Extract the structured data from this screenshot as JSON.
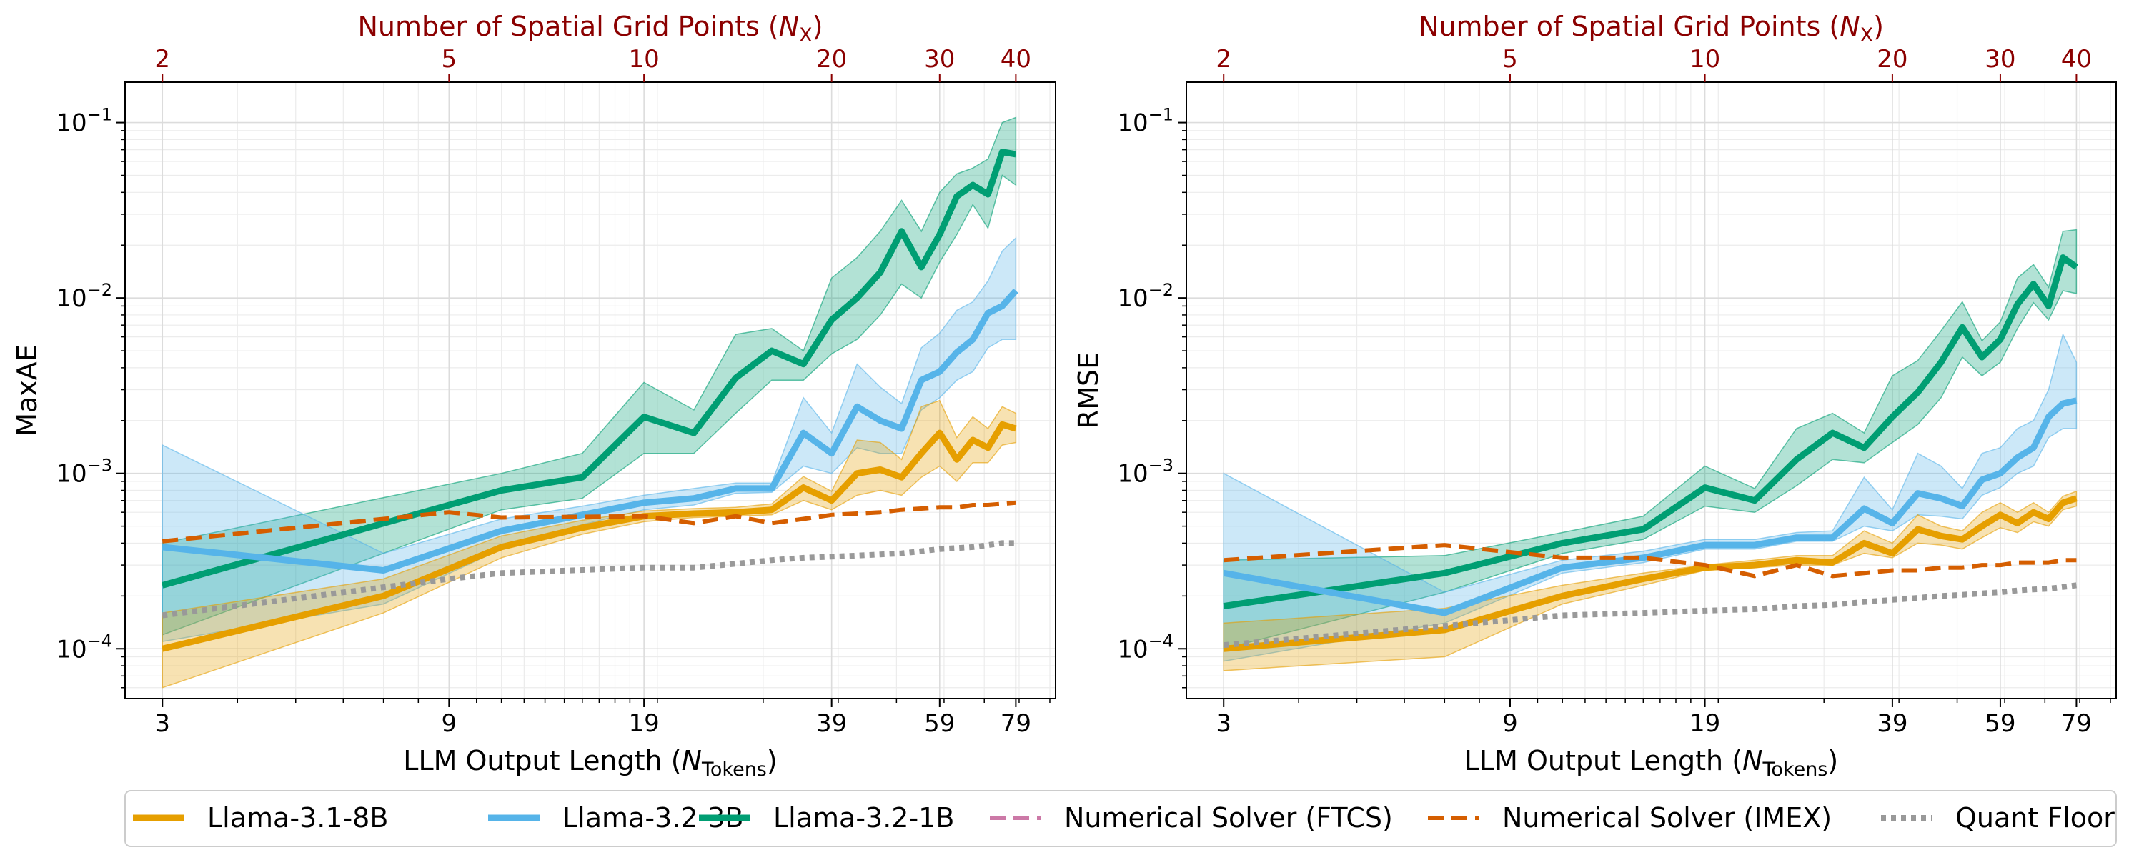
{
  "figure": {
    "legend": [
      {
        "label": "Llama-3.1-8B",
        "color": "#e69f00",
        "style": "solid"
      },
      {
        "label": "Llama-3.2-3B",
        "color": "#56b4e9",
        "style": "solid"
      },
      {
        "label": "Llama-3.2-1B",
        "color": "#009e73",
        "style": "solid"
      },
      {
        "label": "Numerical Solver (FTCS)",
        "color": "#cc79a7",
        "style": "dashed"
      },
      {
        "label": "Numerical Solver (IMEX)",
        "color": "#d55e00",
        "style": "dashed"
      },
      {
        "label": "Quant Floor",
        "color": "#999999",
        "style": "dotted"
      }
    ],
    "top_axis_color": "#8b0000"
  },
  "chart_data": [
    {
      "type": "line",
      "ylabel": "MaxAE",
      "xlabel": "LLM Output Length (N_Tokens)",
      "xlabel_main": "LLM Output Length (",
      "xlabel_var": "N",
      "xlabel_sub": "Tokens",
      "xlabel_end": ")",
      "top_xlabel": "Number of Spatial Grid Points (N_X)",
      "top_xlabel_main": "Number of Spatial Grid Points (",
      "top_xlabel_var": "N",
      "top_xlabel_sub": "X",
      "top_xlabel_end": ")",
      "xscale": "log",
      "yscale": "log",
      "xlim": [
        2.6,
        92
      ],
      "ylim": [
        5.2e-05,
        0.17
      ],
      "xticks": [
        3,
        9,
        19,
        39,
        59,
        79
      ],
      "xtick_labels": [
        "3",
        "9",
        "19",
        "39",
        "59",
        "79"
      ],
      "top_ticks": [
        2,
        5,
        10,
        20,
        30,
        40
      ],
      "top_tick_labels": [
        "2",
        "5",
        "10",
        "20",
        "30",
        "40"
      ],
      "yticks": [
        0.0001,
        0.001,
        0.01,
        0.1
      ],
      "ytick_labels": [
        "10",
        "10",
        "10",
        "10"
      ],
      "ytick_exps": [
        "−4",
        "−3",
        "−2",
        "−1"
      ],
      "series": [
        {
          "name": "Llama-3.2-1B",
          "color": "#009e73",
          "x": [
            3,
            11,
            15,
            19,
            23,
            27,
            31,
            35,
            39,
            43,
            47,
            51,
            55,
            59,
            63,
            67,
            71,
            75,
            79
          ],
          "y": [
            0.00023,
            0.0008,
            0.00095,
            0.0021,
            0.0017,
            0.0035,
            0.005,
            0.0042,
            0.0075,
            0.01,
            0.014,
            0.024,
            0.015,
            0.023,
            0.038,
            0.044,
            0.039,
            0.068,
            0.066
          ],
          "lower": [
            0.00012,
            0.00062,
            0.00072,
            0.0013,
            0.0013,
            0.0022,
            0.0034,
            0.0034,
            0.0048,
            0.0058,
            0.008,
            0.012,
            0.01,
            0.016,
            0.023,
            0.034,
            0.025,
            0.05,
            0.044
          ],
          "upper": [
            0.0004,
            0.001,
            0.0013,
            0.0033,
            0.0023,
            0.0062,
            0.0067,
            0.005,
            0.013,
            0.017,
            0.024,
            0.036,
            0.024,
            0.04,
            0.051,
            0.055,
            0.062,
            0.1,
            0.107
          ]
        },
        {
          "name": "Llama-3.2-3B",
          "color": "#56b4e9",
          "x": [
            3,
            7,
            11,
            15,
            19,
            23,
            27,
            31,
            35,
            39,
            43,
            47,
            51,
            55,
            59,
            63,
            67,
            71,
            75,
            79
          ],
          "y": [
            0.00038,
            0.00028,
            0.00047,
            0.00058,
            0.00068,
            0.00072,
            0.00082,
            0.00082,
            0.0017,
            0.0013,
            0.0024,
            0.002,
            0.0018,
            0.0034,
            0.0038,
            0.0049,
            0.0058,
            0.0082,
            0.009,
            0.011
          ],
          "lower": [
            0.00011,
            0.00018,
            0.00037,
            0.00051,
            0.00062,
            0.00066,
            0.00077,
            0.00078,
            0.0011,
            0.001,
            0.0014,
            0.0013,
            0.0013,
            0.0023,
            0.0027,
            0.0034,
            0.0038,
            0.0052,
            0.0058,
            0.0058
          ],
          "upper": [
            0.00145,
            0.00035,
            0.00055,
            0.00065,
            0.00075,
            0.00082,
            0.00088,
            0.00088,
            0.0027,
            0.0017,
            0.0042,
            0.0031,
            0.0025,
            0.0052,
            0.0063,
            0.0085,
            0.0095,
            0.0125,
            0.0185,
            0.022
          ]
        },
        {
          "name": "Llama-3.1-8B",
          "color": "#e69f00",
          "x": [
            3,
            7,
            11,
            15,
            19,
            23,
            27,
            31,
            35,
            39,
            43,
            47,
            51,
            55,
            59,
            63,
            67,
            71,
            75,
            79
          ],
          "y": [
            0.0001,
            0.0002,
            0.00038,
            0.00049,
            0.00057,
            0.00059,
            0.0006,
            0.00062,
            0.00083,
            0.0007,
            0.001,
            0.00105,
            0.00095,
            0.0013,
            0.0017,
            0.0012,
            0.00155,
            0.0014,
            0.0019,
            0.0018
          ],
          "lower": [
            6e-05,
            0.00016,
            0.00033,
            0.00045,
            0.00053,
            0.00056,
            0.00057,
            0.00058,
            0.0007,
            0.00062,
            0.00075,
            0.0008,
            0.00075,
            0.00095,
            0.0011,
            0.0009,
            0.00115,
            0.00115,
            0.00145,
            0.0015
          ],
          "upper": [
            0.00016,
            0.00025,
            0.00044,
            0.00054,
            0.00061,
            0.00063,
            0.00064,
            0.00067,
            0.00096,
            0.00079,
            0.00155,
            0.0015,
            0.0012,
            0.0024,
            0.0026,
            0.0016,
            0.0021,
            0.0018,
            0.0024,
            0.0022
          ]
        },
        {
          "name": "Numerical Solver (IMEX)",
          "color": "#d55e00",
          "dash": "dashed",
          "x": [
            3,
            9,
            11,
            19,
            23,
            27,
            31,
            35,
            39,
            43,
            47,
            51,
            55,
            59,
            63,
            67,
            71,
            75,
            79
          ],
          "y": [
            0.00041,
            0.0006,
            0.00056,
            0.00057,
            0.00052,
            0.00057,
            0.00052,
            0.00055,
            0.00058,
            0.00059,
            0.0006,
            0.00062,
            0.00063,
            0.00064,
            0.00064,
            0.00066,
            0.00066,
            0.00067,
            0.00068
          ]
        },
        {
          "name": "Quant Floor",
          "color": "#999999",
          "dash": "dotted",
          "x": [
            3,
            9,
            11,
            19,
            23,
            27,
            31,
            35,
            39,
            43,
            47,
            51,
            55,
            59,
            63,
            67,
            71,
            75,
            79
          ],
          "y": [
            0.000155,
            0.00025,
            0.00027,
            0.00029,
            0.00029,
            0.000305,
            0.00032,
            0.00033,
            0.000335,
            0.00034,
            0.000345,
            0.00035,
            0.00036,
            0.00037,
            0.000375,
            0.00038,
            0.00039,
            0.0004,
            0.0004
          ]
        }
      ]
    },
    {
      "type": "line",
      "ylabel": "RMSE",
      "xlabel": "LLM Output Length (N_Tokens)",
      "xlabel_main": "LLM Output Length (",
      "xlabel_var": "N",
      "xlabel_sub": "Tokens",
      "xlabel_end": ")",
      "top_xlabel": "Number of Spatial Grid Points (N_X)",
      "top_xlabel_main": "Number of Spatial Grid Points (",
      "top_xlabel_var": "N",
      "top_xlabel_sub": "X",
      "top_xlabel_end": ")",
      "xscale": "log",
      "yscale": "log",
      "xlim": [
        2.6,
        92
      ],
      "ylim": [
        5.2e-05,
        0.17
      ],
      "xticks": [
        3,
        9,
        19,
        39,
        59,
        79
      ],
      "xtick_labels": [
        "3",
        "9",
        "19",
        "39",
        "59",
        "79"
      ],
      "top_ticks": [
        2,
        5,
        10,
        20,
        30,
        40
      ],
      "top_tick_labels": [
        "2",
        "5",
        "10",
        "20",
        "30",
        "40"
      ],
      "yticks": [
        0.0001,
        0.001,
        0.01,
        0.1
      ],
      "ytick_labels": [
        "10",
        "10",
        "10",
        "10"
      ],
      "ytick_exps": [
        "−4",
        "−3",
        "−2",
        "−1"
      ],
      "series": [
        {
          "name": "Llama-3.2-1B",
          "color": "#009e73",
          "x": [
            3,
            7,
            11,
            15,
            19,
            23,
            27,
            31,
            35,
            39,
            43,
            47,
            51,
            55,
            59,
            63,
            67,
            71,
            75,
            79
          ],
          "y": [
            0.000175,
            0.00027,
            0.0004,
            0.00048,
            0.00083,
            0.0007,
            0.0012,
            0.0017,
            0.0014,
            0.0021,
            0.0029,
            0.0043,
            0.0068,
            0.0046,
            0.0058,
            0.0092,
            0.012,
            0.009,
            0.017,
            0.015
          ],
          "lower": [
            0.0001,
            0.00021,
            0.00035,
            0.00042,
            0.00065,
            0.0006,
            0.00085,
            0.0012,
            0.00115,
            0.0015,
            0.0019,
            0.0027,
            0.0046,
            0.0036,
            0.0043,
            0.0067,
            0.0094,
            0.0075,
            0.011,
            0.0106
          ],
          "upper": [
            0.00032,
            0.00034,
            0.00046,
            0.00057,
            0.0011,
            0.00082,
            0.0018,
            0.0022,
            0.0017,
            0.0036,
            0.0044,
            0.0065,
            0.0095,
            0.0057,
            0.0073,
            0.013,
            0.0155,
            0.0115,
            0.024,
            0.0245
          ]
        },
        {
          "name": "Llama-3.2-3B",
          "color": "#56b4e9",
          "x": [
            3,
            7,
            11,
            15,
            19,
            23,
            27,
            31,
            35,
            39,
            43,
            47,
            51,
            55,
            59,
            63,
            67,
            71,
            75,
            79
          ],
          "y": [
            0.00027,
            0.00016,
            0.00029,
            0.00033,
            0.00039,
            0.00039,
            0.00043,
            0.00043,
            0.00063,
            0.00052,
            0.00077,
            0.00072,
            0.00065,
            0.00092,
            0.001,
            0.00123,
            0.0014,
            0.0021,
            0.0025,
            0.0026
          ],
          "lower": [
            8.5e-05,
            0.00014,
            0.00027,
            0.00031,
            0.00037,
            0.00037,
            0.00041,
            0.00041,
            0.0005,
            0.00047,
            0.00058,
            0.00057,
            0.00055,
            0.00075,
            0.00083,
            0.001,
            0.0011,
            0.0016,
            0.0018,
            0.0018
          ],
          "upper": [
            0.001,
            0.00021,
            0.00032,
            0.00036,
            0.00042,
            0.00042,
            0.00046,
            0.00047,
            0.00095,
            0.00062,
            0.0013,
            0.0011,
            0.00082,
            0.0013,
            0.0014,
            0.0018,
            0.002,
            0.003,
            0.0062,
            0.0043
          ]
        },
        {
          "name": "Llama-3.1-8B",
          "color": "#e69f00",
          "x": [
            3,
            7,
            11,
            15,
            19,
            23,
            27,
            31,
            35,
            39,
            43,
            47,
            51,
            55,
            59,
            63,
            67,
            71,
            75,
            79
          ],
          "y": [
            0.0001,
            0.000128,
            0.0002,
            0.00025,
            0.00029,
            0.0003,
            0.00032,
            0.00031,
            0.0004,
            0.00035,
            0.00048,
            0.00044,
            0.00042,
            0.0005,
            0.00058,
            0.00052,
            0.0006,
            0.00055,
            0.00068,
            0.00072
          ],
          "lower": [
            7.5e-05,
            9e-05,
            0.00018,
            0.00023,
            0.00028,
            0.00029,
            0.0003,
            0.0003,
            0.00035,
            0.00033,
            0.0004,
            0.00039,
            0.00037,
            0.00043,
            0.00049,
            0.00046,
            0.00053,
            0.0005,
            0.00062,
            0.00065
          ],
          "upper": [
            0.00014,
            0.00017,
            0.00023,
            0.00027,
            0.0003,
            0.00032,
            0.00034,
            0.00034,
            0.00047,
            0.0004,
            0.00058,
            0.0005,
            0.00047,
            0.0006,
            0.00068,
            0.0006,
            0.00068,
            0.0006,
            0.00074,
            0.00079
          ]
        },
        {
          "name": "Numerical Solver (IMEX)",
          "color": "#d55e00",
          "dash": "dashed",
          "x": [
            3,
            7,
            11,
            15,
            19,
            23,
            27,
            31,
            35,
            39,
            43,
            47,
            51,
            55,
            59,
            63,
            67,
            71,
            75,
            79
          ],
          "y": [
            0.00032,
            0.00039,
            0.00033,
            0.00033,
            0.0003,
            0.00026,
            0.0003,
            0.00026,
            0.00027,
            0.00028,
            0.00028,
            0.00029,
            0.00029,
            0.0003,
            0.0003,
            0.00031,
            0.00031,
            0.00031,
            0.00032,
            0.00032
          ]
        },
        {
          "name": "Quant Floor",
          "color": "#999999",
          "dash": "dotted",
          "x": [
            3,
            7,
            11,
            15,
            19,
            23,
            27,
            31,
            35,
            39,
            43,
            47,
            51,
            55,
            59,
            63,
            67,
            71,
            75,
            79
          ],
          "y": [
            0.000105,
            0.000135,
            0.000155,
            0.00016,
            0.000165,
            0.000168,
            0.000175,
            0.000178,
            0.000185,
            0.00019,
            0.000195,
            0.0002,
            0.000203,
            0.000207,
            0.00021,
            0.000215,
            0.000218,
            0.00022,
            0.000225,
            0.00023
          ]
        }
      ]
    }
  ]
}
